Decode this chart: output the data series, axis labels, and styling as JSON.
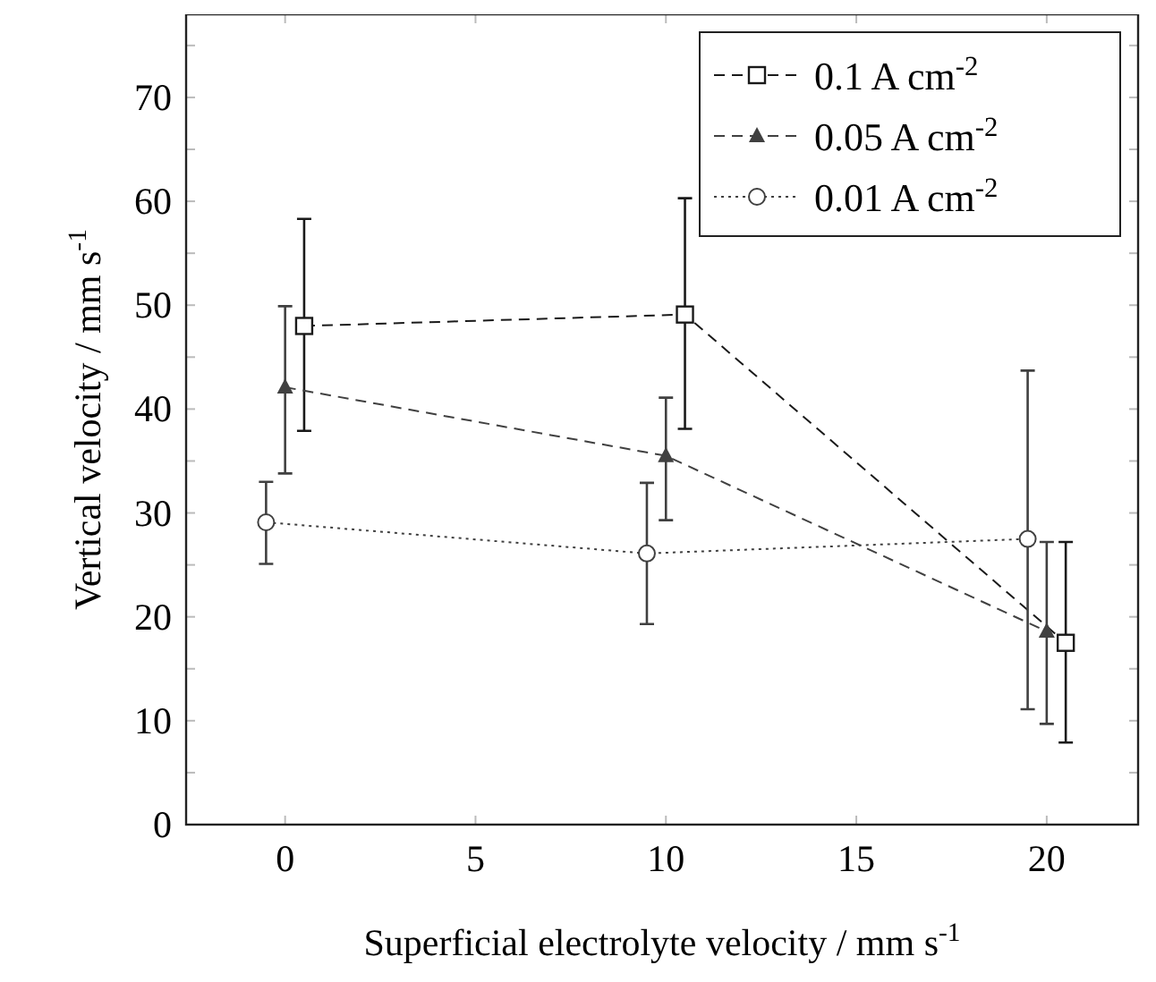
{
  "chart_data": {
    "type": "line",
    "xlabel": "Superficial electrolyte velocity / mm s$^{-1}$",
    "ylabel": "Vertical velocity / mm s$^{-1}$",
    "xlim": [
      -2.6,
      22.4
    ],
    "ylim": [
      0,
      78
    ],
    "xticks": [
      0,
      5,
      10,
      15,
      20
    ],
    "yticks": [
      0,
      {
        "value": 5,
        "label": null
      },
      10,
      {
        "value": 15,
        "label": null
      },
      20,
      {
        "value": 25,
        "label": null
      },
      30,
      {
        "value": 35,
        "label": null
      },
      40,
      {
        "value": 45,
        "label": null
      },
      50,
      {
        "value": 55,
        "label": null
      },
      60,
      {
        "value": 65,
        "label": null
      },
      70,
      {
        "value": 75,
        "label": null
      }
    ],
    "grid": false,
    "legend": "top right",
    "series": [
      {
        "name": "0.1 A cm$^{-2}$",
        "color": "#1a1a1a",
        "marker": "square",
        "line_style": "dashed",
        "x": [
          0.5,
          10.5,
          20.5
        ],
        "values": [
          48.0,
          49.1,
          17.5
        ],
        "errors": [
          [
            37.9,
            58.3
          ],
          [
            38.1,
            60.3
          ],
          [
            7.9,
            27.2
          ]
        ]
      },
      {
        "name": "0.05 A cm$^{-2}$",
        "color": "#404040",
        "marker": "triangle",
        "line_style": "dashed",
        "x": [
          0,
          10,
          20
        ],
        "values": [
          42.1,
          35.5,
          18.6
        ],
        "errors": [
          [
            33.8,
            49.9
          ],
          [
            29.3,
            41.1
          ],
          [
            9.7,
            27.2
          ]
        ]
      },
      {
        "name": "0.01 A cm$^{-2}$",
        "color": "#404040",
        "marker": "circle",
        "line_style": "dotted",
        "x": [
          -0.5,
          9.5,
          19.5
        ],
        "values": [
          29.1,
          26.1,
          27.5
        ],
        "errors": [
          [
            25.1,
            33.0
          ],
          [
            19.3,
            32.9
          ],
          [
            11.1,
            43.7
          ]
        ]
      }
    ]
  }
}
